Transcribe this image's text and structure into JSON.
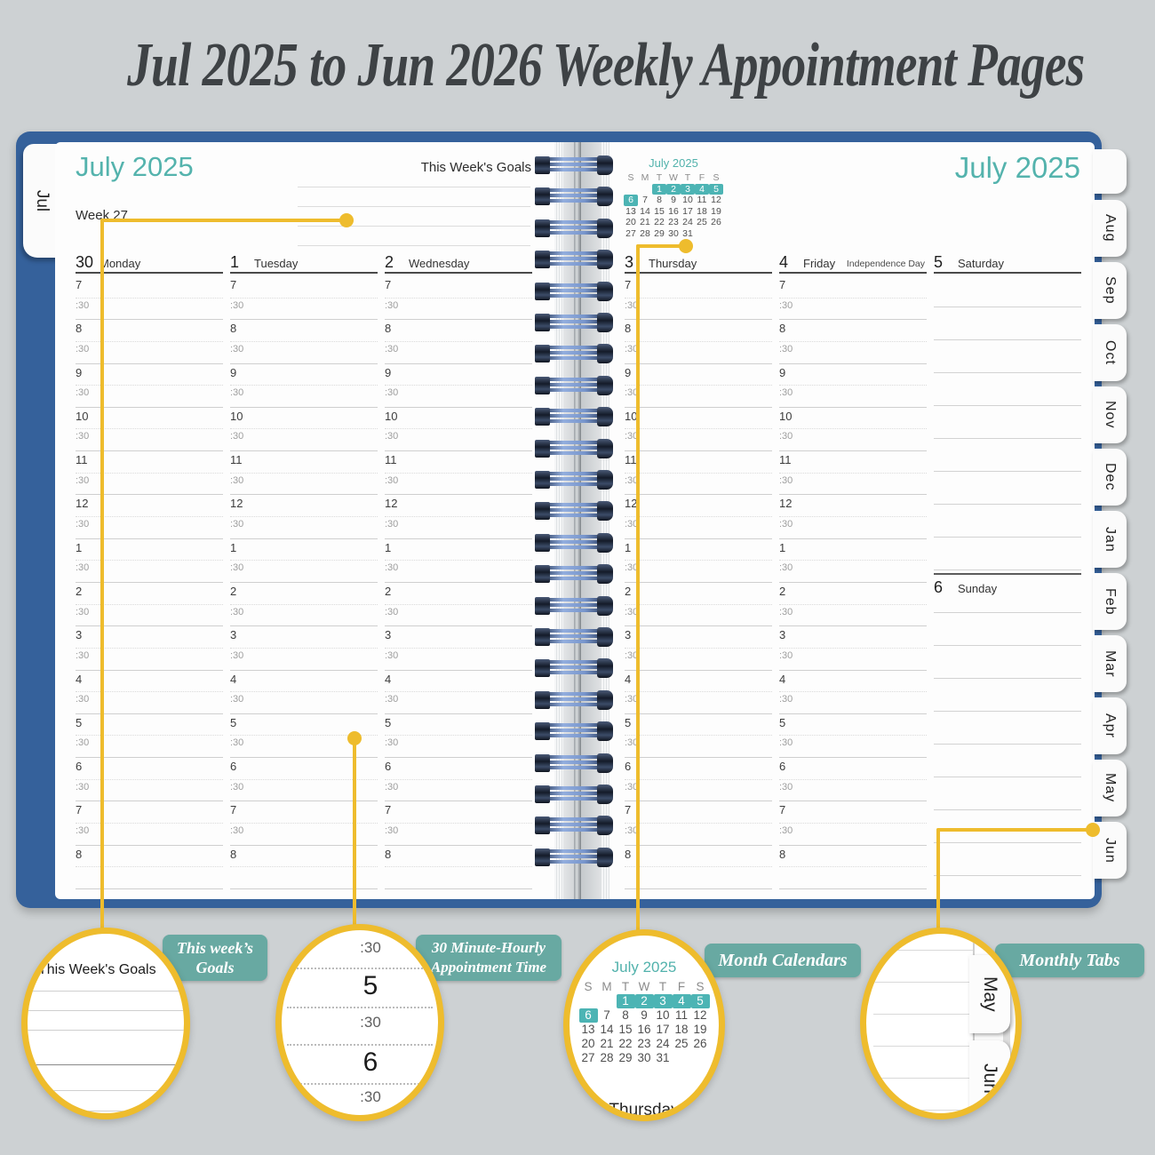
{
  "title": "Jul 2025 to Jun 2026 Weekly Appointment Pages",
  "left_tab": "Jul",
  "right_tabs": [
    "Aug",
    "Sep",
    "Oct",
    "Nov",
    "Dec",
    "Jan",
    "Feb",
    "Mar",
    "Apr",
    "May",
    "Jun"
  ],
  "left_page": {
    "heading": "July 2025",
    "goals_title": "This Week's Goals",
    "week_label": "Week 27",
    "days": [
      {
        "num": "30",
        "name": "Monday"
      },
      {
        "num": "1",
        "name": "Tuesday"
      },
      {
        "num": "2",
        "name": "Wednesday"
      }
    ]
  },
  "right_page": {
    "heading": "July 2025",
    "mini_calendar": {
      "title": "July 2025",
      "day_headers": [
        "S",
        "M",
        "T",
        "W",
        "T",
        "F",
        "S"
      ],
      "weeks": [
        [
          "",
          "",
          "1",
          "2",
          "3",
          "4",
          "5"
        ],
        [
          "6",
          "7",
          "8",
          "9",
          "10",
          "11",
          "12"
        ],
        [
          "13",
          "14",
          "15",
          "16",
          "17",
          "18",
          "19"
        ],
        [
          "20",
          "21",
          "22",
          "23",
          "24",
          "25",
          "26"
        ],
        [
          "27",
          "28",
          "29",
          "30",
          "31",
          "",
          ""
        ]
      ],
      "highlighted": [
        "1",
        "2",
        "3",
        "4",
        "5",
        "6"
      ]
    },
    "days": [
      {
        "num": "3",
        "name": "Thursday"
      },
      {
        "num": "4",
        "name": "Friday",
        "note": "Independence Day"
      },
      {
        "num": "5",
        "name": "Saturday",
        "no_times": true
      }
    ],
    "sunday": {
      "num": "6",
      "name": "Sunday"
    }
  },
  "time_slots": [
    "7",
    ":30",
    "8",
    ":30",
    "9",
    ":30",
    "10",
    ":30",
    "11",
    ":30",
    "12",
    ":30",
    "1",
    ":30",
    "2",
    ":30",
    "3",
    ":30",
    "4",
    ":30",
    "5",
    ":30",
    "6",
    ":30",
    "7",
    ":30",
    "8"
  ],
  "callouts": [
    {
      "lines": [
        "This week’s",
        "Goals"
      ]
    },
    {
      "lines": [
        "30 Minute-Hourly",
        "Appointment Time"
      ]
    },
    {
      "lines": [
        "Month Calendars"
      ]
    },
    {
      "lines": [
        "Monthly Tabs"
      ]
    }
  ],
  "callout_circles": {
    "goals": {
      "title": "This Week's Goals"
    },
    "times": {
      "labels": [
        ":30",
        "5",
        ":30",
        "6",
        ":30"
      ]
    },
    "calendar": {
      "partial_label": "Thursday"
    },
    "tabs": {
      "labels": [
        "May",
        "Jun"
      ]
    }
  },
  "colors": {
    "accent_teal": "#52b2ac",
    "calendar_highlight": "#4cb4b4",
    "badge_teal": "#68a9a2",
    "connector_yellow": "#eebc2d",
    "cover_blue": "#35619b"
  }
}
